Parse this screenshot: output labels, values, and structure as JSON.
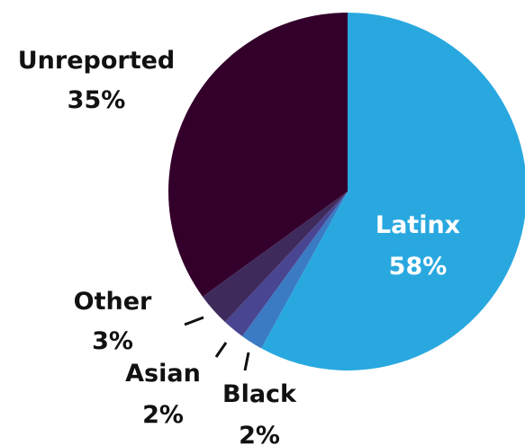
{
  "chart_data": {
    "type": "pie",
    "title": "",
    "slices": [
      {
        "name": "Latinx",
        "value": 58,
        "label": "58%",
        "color": "#29a8e0"
      },
      {
        "name": "Black",
        "value": 2,
        "label": "2%",
        "color": "#3a7bc4"
      },
      {
        "name": "Asian",
        "value": 2,
        "label": "2%",
        "color": "#4a4590"
      },
      {
        "name": "Other",
        "value": 3,
        "label": "3%",
        "color": "#3f2a5c"
      },
      {
        "name": "Unreported",
        "value": 35,
        "label": "35%",
        "color": "#33002b"
      }
    ],
    "label_colors": {
      "inside": "#ffffff",
      "outside": "#111111"
    }
  }
}
